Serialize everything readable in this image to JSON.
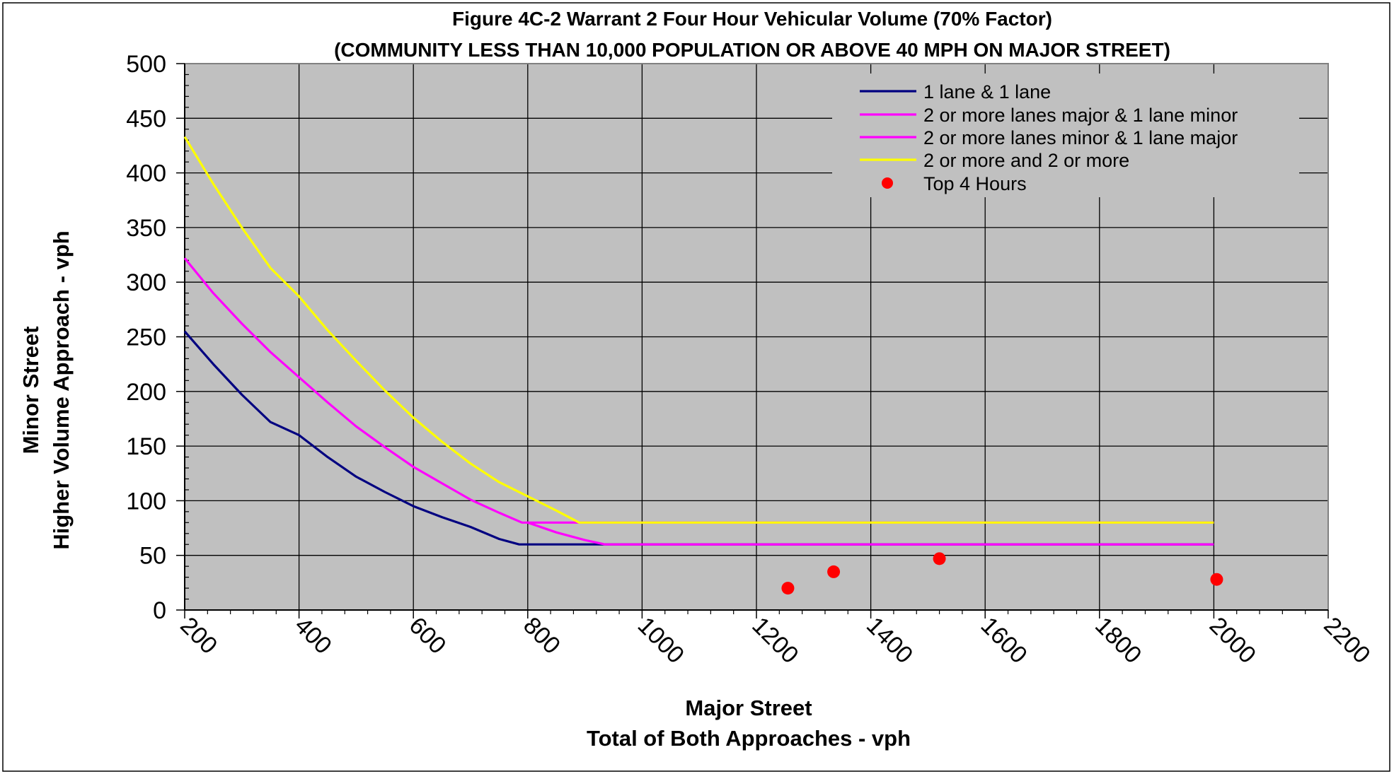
{
  "chart_data": {
    "type": "line",
    "title": "Figure 4C-2 Warrant 2 Four Hour Vehicular Volume (70% Factor)",
    "subtitle": "(COMMUNITY LESS THAN 10,000 POPULATION OR ABOVE 40 MPH ON MAJOR STREET)",
    "xlabel": [
      "Major Street",
      "Total of Both Approaches - vph"
    ],
    "ylabel": [
      "Minor Street",
      "Higher Volume Approach - vph"
    ],
    "xlim": [
      200,
      2200
    ],
    "ylim": [
      0,
      500
    ],
    "x_major_step": 200,
    "x_minor_step": 40,
    "y_major_step": 50,
    "y_minor_step": 10,
    "x_tick_labels": [
      "200",
      "400",
      "600",
      "800",
      "1000",
      "1200",
      "1400",
      "1600",
      "1800",
      "2000",
      "2200"
    ],
    "y_tick_labels": [
      "0",
      "50",
      "100",
      "150",
      "200",
      "250",
      "300",
      "350",
      "400",
      "450",
      "500"
    ],
    "grid": true,
    "legend_position": "top-right",
    "plot_background": "#c0c0c0",
    "series": [
      {
        "name": "1 lane & 1 lane",
        "kind": "line",
        "color": "#000080",
        "points": [
          [
            200,
            255
          ],
          [
            250,
            225
          ],
          [
            300,
            197
          ],
          [
            350,
            172
          ],
          [
            400,
            160
          ],
          [
            450,
            140
          ],
          [
            500,
            122
          ],
          [
            550,
            108
          ],
          [
            600,
            95
          ],
          [
            650,
            85
          ],
          [
            700,
            76
          ],
          [
            750,
            65
          ],
          [
            785,
            60
          ],
          [
            800,
            60
          ],
          [
            900,
            60
          ],
          [
            2000,
            60
          ]
        ]
      },
      {
        "name": "2 or more lanes major & 1 lane minor",
        "kind": "line",
        "color": "#ff00ff",
        "points": [
          [
            200,
            322
          ],
          [
            250,
            290
          ],
          [
            300,
            262
          ],
          [
            350,
            236
          ],
          [
            400,
            213
          ],
          [
            450,
            190
          ],
          [
            500,
            168
          ],
          [
            550,
            149
          ],
          [
            600,
            131
          ],
          [
            650,
            116
          ],
          [
            700,
            101
          ],
          [
            750,
            89
          ],
          [
            790,
            80
          ],
          [
            850,
            80
          ],
          [
            900,
            80
          ],
          [
            2000,
            80
          ]
        ]
      },
      {
        "name": "2 or more lanes minor & 1 lane major",
        "kind": "line",
        "color": "#ff00ff",
        "points": [
          [
            800,
            80
          ],
          [
            850,
            71
          ],
          [
            900,
            64
          ],
          [
            935,
            60
          ],
          [
            1000,
            60
          ],
          [
            2000,
            60
          ]
        ]
      },
      {
        "name": "2 or more and 2 or more",
        "kind": "line",
        "color": "#ffff00",
        "points": [
          [
            200,
            433
          ],
          [
            250,
            390
          ],
          [
            300,
            350
          ],
          [
            350,
            313
          ],
          [
            400,
            287
          ],
          [
            450,
            256
          ],
          [
            500,
            228
          ],
          [
            550,
            201
          ],
          [
            600,
            176
          ],
          [
            650,
            154
          ],
          [
            700,
            134
          ],
          [
            750,
            117
          ],
          [
            800,
            104
          ],
          [
            850,
            91
          ],
          [
            890,
            80
          ],
          [
            1000,
            80
          ],
          [
            2000,
            80
          ]
        ]
      },
      {
        "name": "Top 4 Hours",
        "kind": "scatter",
        "color": "#ff0000",
        "points": [
          [
            1255,
            20
          ],
          [
            1335,
            35
          ],
          [
            1520,
            47
          ],
          [
            2005,
            28
          ]
        ]
      }
    ]
  }
}
